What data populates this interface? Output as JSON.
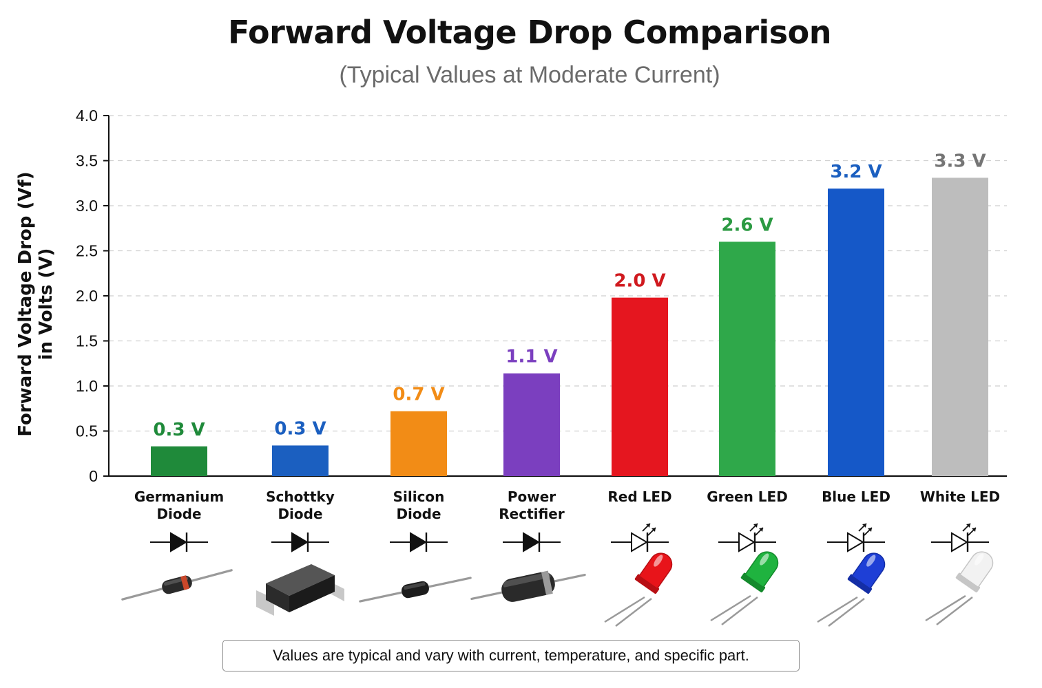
{
  "chart_data": {
    "type": "bar",
    "title": "Forward Voltage Drop Comparison",
    "subtitle": "(Typical Values at Moderate Current)",
    "ylabel_lines": [
      "Forward Voltage Drop (Vf)",
      "in Volts (V)"
    ],
    "xlabel": "",
    "ylim": [
      0,
      4.0
    ],
    "yticks": [
      0,
      0.5,
      1.0,
      1.5,
      2.0,
      2.5,
      3.0,
      3.5,
      4.0
    ],
    "ytick_labels": [
      "0",
      "0.5",
      "1.0",
      "1.5",
      "2.0",
      "2.5",
      "3.0",
      "3.5",
      "4.0"
    ],
    "grid": true,
    "categories": [
      {
        "lines": [
          "Germanium",
          "Diode"
        ],
        "symbol": "diode",
        "icon": "axial-diode-banded-icon"
      },
      {
        "lines": [
          "Schottky",
          "Diode"
        ],
        "symbol": "diode",
        "icon": "smd-diode-icon"
      },
      {
        "lines": [
          "Silicon",
          "Diode"
        ],
        "symbol": "diode",
        "icon": "axial-diode-icon"
      },
      {
        "lines": [
          "Power",
          "Rectifier"
        ],
        "symbol": "diode",
        "icon": "power-rectifier-icon"
      },
      {
        "lines": [
          "Red LED"
        ],
        "symbol": "led",
        "icon": "red-led-icon"
      },
      {
        "lines": [
          "Green LED"
        ],
        "symbol": "led",
        "icon": "green-led-icon"
      },
      {
        "lines": [
          "Blue LED"
        ],
        "symbol": "led",
        "icon": "blue-led-icon"
      },
      {
        "lines": [
          "White LED"
        ],
        "symbol": "led",
        "icon": "white-led-icon"
      }
    ],
    "values": [
      0.33,
      0.34,
      0.72,
      1.14,
      1.98,
      2.6,
      3.19,
      3.31
    ],
    "value_labels": [
      "0.3 V",
      "0.3 V",
      "0.7 V",
      "1.1 V",
      "2.0 V",
      "2.6 V",
      "3.2 V",
      "3.3 V"
    ],
    "bar_colors": [
      "#1f8a3a",
      "#1b5fc0",
      "#f28c16",
      "#7b3fbf",
      "#e5161f",
      "#2fa84a",
      "#1558c8",
      "#bdbdbd"
    ],
    "label_colors": [
      "#1f8a3a",
      "#1b5fc0",
      "#f28c16",
      "#7b3fbf",
      "#d01a1f",
      "#2b9a42",
      "#1b5fc0",
      "#757575"
    ]
  },
  "footnote": "Values are typical and vary with current, temperature, and specific part."
}
